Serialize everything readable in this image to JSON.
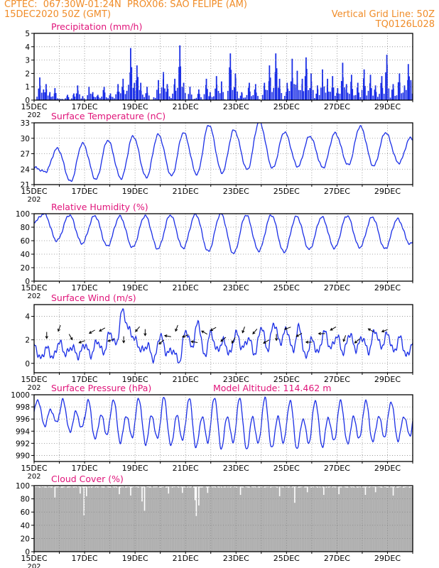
{
  "header": {
    "line1_left": "CPTEC:  067:30W-01:24N  PROX06: SAO FELIPE (AM)",
    "line2_left": "15DEC2020 50Z (GMT)",
    "line2_right": "Vertical Grid Line: 50Z",
    "line3_right": "TQ0126L028",
    "model_altitude": "Model Altitude: 114.462 m"
  },
  "colors": {
    "header": "#f08c28",
    "title": "#e0147a",
    "line": "#1a2ee6",
    "bar": "#1a2ee6",
    "cloud": "#b0b0b0",
    "grid": "#888888",
    "arrow": "#000000"
  },
  "x_axis": {
    "tick_labels": [
      "15DEC",
      "17DEC",
      "19DEC",
      "21DEC",
      "23DEC",
      "25DEC",
      "27DEC",
      "29DEC"
    ],
    "year_label": "202"
  },
  "chart_data": [
    {
      "id": "precip",
      "type": "bar",
      "title": "Precipitation (mm/h)",
      "ylim": [
        0,
        5
      ],
      "yticks": [
        0,
        1,
        2,
        3,
        4,
        5
      ],
      "x_range_days": [
        0,
        15
      ],
      "spikes": [
        [
          0.2,
          1.7
        ],
        [
          0.35,
          0.8
        ],
        [
          0.45,
          1.2
        ],
        [
          0.6,
          0.6
        ],
        [
          0.8,
          0.9
        ],
        [
          1.3,
          0.4
        ],
        [
          1.55,
          0.5
        ],
        [
          1.7,
          1.1
        ],
        [
          1.9,
          0.3
        ],
        [
          2.15,
          1.0
        ],
        [
          2.3,
          0.6
        ],
        [
          2.5,
          0.4
        ],
        [
          2.75,
          1.0
        ],
        [
          3.0,
          0.5
        ],
        [
          3.3,
          1.2
        ],
        [
          3.5,
          1.6
        ],
        [
          3.65,
          0.7
        ],
        [
          3.8,
          3.9
        ],
        [
          3.95,
          1.3
        ],
        [
          4.05,
          2.6
        ],
        [
          4.2,
          1.3
        ],
        [
          4.45,
          1.0
        ],
        [
          4.9,
          1.5
        ],
        [
          5.1,
          2.1
        ],
        [
          5.25,
          1.2
        ],
        [
          5.55,
          1.6
        ],
        [
          5.75,
          4.1
        ],
        [
          5.9,
          1.3
        ],
        [
          6.15,
          1.0
        ],
        [
          6.5,
          0.8
        ],
        [
          6.8,
          1.6
        ],
        [
          6.95,
          0.6
        ],
        [
          7.2,
          1.8
        ],
        [
          7.4,
          1.4
        ],
        [
          7.75,
          3.5
        ],
        [
          7.95,
          2.0
        ],
        [
          8.2,
          0.6
        ],
        [
          8.5,
          1.3
        ],
        [
          8.75,
          1.2
        ],
        [
          9.1,
          1.3
        ],
        [
          9.3,
          2.6
        ],
        [
          9.55,
          3.5
        ],
        [
          9.7,
          1.6
        ],
        [
          10.0,
          1.3
        ],
        [
          10.2,
          3.1
        ],
        [
          10.4,
          2.2
        ],
        [
          10.6,
          1.6
        ],
        [
          10.75,
          3.2
        ],
        [
          10.95,
          2.0
        ],
        [
          11.2,
          1.1
        ],
        [
          11.4,
          2.3
        ],
        [
          11.6,
          1.6
        ],
        [
          11.8,
          1.8
        ],
        [
          12.0,
          0.9
        ],
        [
          12.2,
          2.8
        ],
        [
          12.35,
          1.2
        ],
        [
          12.55,
          1.9
        ],
        [
          12.8,
          1.3
        ],
        [
          13.05,
          2.3
        ],
        [
          13.3,
          1.9
        ],
        [
          13.5,
          1.1
        ],
        [
          13.75,
          1.8
        ],
        [
          13.95,
          3.4
        ],
        [
          14.2,
          1.2
        ],
        [
          14.45,
          2.0
        ],
        [
          14.65,
          1.1
        ],
        [
          14.8,
          2.7
        ],
        [
          14.9,
          1.5
        ]
      ]
    },
    {
      "id": "temp",
      "type": "line",
      "title": "Surface Temperature (nC)",
      "ylim": [
        21,
        33
      ],
      "yticks": [
        21,
        24,
        27,
        30,
        33
      ],
      "x_range_days": [
        0,
        15
      ],
      "min_t": [
        23.5,
        21.6,
        22.0,
        22.2,
        22.4,
        22.7,
        23.0,
        23.3,
        23.9,
        24.2,
        24.5,
        24.3,
        24.8,
        24.6,
        25.2,
        24.3
      ],
      "max_t": [
        28.0,
        29.0,
        29.6,
        30.4,
        30.7,
        31.1,
        32.6,
        31.6,
        33.2,
        31.2,
        30.4,
        31.0,
        32.3,
        31.1,
        30.1
      ]
    },
    {
      "id": "rh",
      "type": "line",
      "title": "Relative Humidity (%)",
      "ylim": [
        0,
        100
      ],
      "yticks": [
        0,
        20,
        40,
        60,
        80,
        100
      ],
      "x_range_days": [
        0,
        15
      ],
      "max_h": [
        100,
        98,
        97,
        96,
        97,
        98,
        99,
        100,
        98,
        98,
        96,
        95,
        97,
        95,
        92,
        92
      ],
      "min_h": [
        60,
        56,
        52,
        50,
        48,
        49,
        44,
        41,
        45,
        43,
        47,
        49,
        50,
        48,
        55
      ]
    },
    {
      "id": "wind",
      "type": "line",
      "title": "Surface Wind (m/s)",
      "ylim": [
        -0.8,
        5
      ],
      "yticks": [
        0,
        2,
        4
      ],
      "x_range_days": [
        0,
        15
      ],
      "speed": [
        1.6,
        0.4,
        1.3,
        0.5,
        1.8,
        0.8,
        1.4,
        0.6,
        1.6,
        0.7,
        1.9,
        0.9,
        2.6,
        1.6,
        4.5,
        2.9,
        2.0,
        1.1,
        1.5,
        0.3,
        2.4,
        0.9,
        1.1,
        0.1,
        2.8,
        1.4,
        3.5,
        0.6,
        2.6,
        1.1,
        1.9,
        0.8,
        2.6,
        1.3,
        2.1,
        0.8,
        3.1,
        1.2,
        3.4,
        1.8,
        2.9,
        1.1,
        3.1,
        0.5,
        2.0,
        0.9,
        2.7,
        1.3,
        2.3,
        0.9,
        2.5,
        1.2,
        2.2,
        1.0,
        2.8,
        1.4,
        2.5,
        1.0,
        2.2,
        0.6,
        1.7
      ],
      "arrows": [
        [
          0.5,
          180
        ],
        [
          1.0,
          200
        ],
        [
          1.45,
          150
        ],
        [
          1.9,
          250
        ],
        [
          2.3,
          240
        ],
        [
          2.7,
          240
        ],
        [
          3.05,
          250
        ],
        [
          3.55,
          180
        ],
        [
          4.1,
          220
        ],
        [
          4.4,
          180
        ],
        [
          5.05,
          230
        ],
        [
          5.3,
          280
        ],
        [
          5.65,
          200
        ],
        [
          6.0,
          250
        ],
        [
          6.35,
          280
        ],
        [
          6.75,
          300
        ],
        [
          7.1,
          240
        ],
        [
          7.5,
          230
        ],
        [
          7.9,
          210
        ],
        [
          8.3,
          200
        ],
        [
          8.75,
          220
        ],
        [
          9.2,
          240
        ],
        [
          9.6,
          180
        ],
        [
          10.05,
          250
        ],
        [
          10.5,
          240
        ],
        [
          10.9,
          270
        ],
        [
          11.4,
          270
        ],
        [
          11.85,
          240
        ],
        [
          12.3,
          200
        ],
        [
          12.8,
          230
        ],
        [
          13.35,
          300
        ],
        [
          13.9,
          250
        ]
      ]
    },
    {
      "id": "pressure",
      "type": "line",
      "title": "Surface Pressure (hPa)",
      "ylim": [
        989,
        1000
      ],
      "yticks": [
        990,
        992,
        994,
        996,
        998,
        1000
      ],
      "x_range_days": [
        0,
        15
      ],
      "amplitude": [
        2.4,
        3.0,
        3.6,
        4.0,
        4.3,
        4.5,
        4.6,
        4.8,
        4.8,
        4.7,
        4.5,
        4.3,
        4.0,
        3.8,
        3.6
      ],
      "base": [
        996.8,
        996.2,
        995.5,
        995.3,
        995.2,
        995.1,
        994.9,
        994.9,
        994.7,
        994.8,
        994.6,
        994.8,
        995.0,
        995.2,
        995.3
      ]
    },
    {
      "id": "cloud",
      "type": "bar",
      "title": "Cloud Cover (%)",
      "ylim": [
        0,
        100
      ],
      "yticks": [
        0,
        20,
        40,
        60,
        80,
        100
      ],
      "x_range_days": [
        0,
        15
      ],
      "typical": 97,
      "dips": [
        [
          0.8,
          82
        ],
        [
          1.8,
          88
        ],
        [
          1.95,
          55
        ],
        [
          2.05,
          84
        ],
        [
          3.35,
          87
        ],
        [
          3.8,
          85
        ],
        [
          4.25,
          76
        ],
        [
          4.35,
          62
        ],
        [
          5.3,
          88
        ],
        [
          5.85,
          89
        ],
        [
          6.35,
          78
        ],
        [
          6.4,
          54
        ],
        [
          6.5,
          70
        ],
        [
          6.85,
          89
        ],
        [
          8.15,
          86
        ],
        [
          9.7,
          84
        ],
        [
          10.3,
          74
        ],
        [
          10.8,
          90
        ],
        [
          11.45,
          86
        ],
        [
          12.05,
          87
        ],
        [
          13.1,
          86
        ],
        [
          13.5,
          90
        ],
        [
          14.2,
          85
        ]
      ]
    }
  ]
}
